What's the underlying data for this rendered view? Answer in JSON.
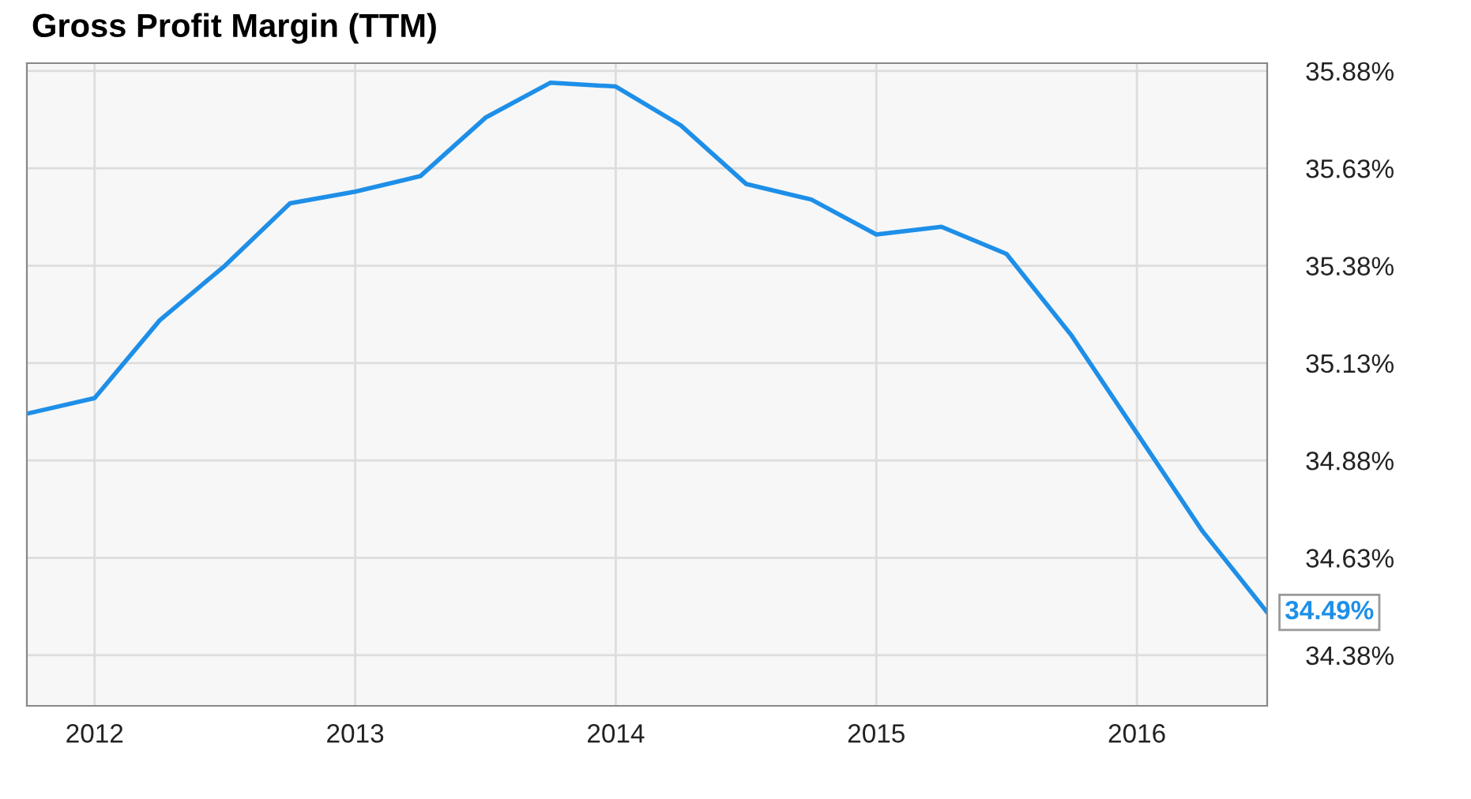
{
  "chart_data": {
    "type": "line",
    "title": "Gross Profit Margin (TTM)",
    "x": [
      2011.74,
      2012,
      2012.25,
      2012.5,
      2012.75,
      2013,
      2013.25,
      2013.5,
      2013.75,
      2014,
      2014.25,
      2014.5,
      2014.75,
      2015,
      2015.25,
      2015.5,
      2015.75,
      2016,
      2016.25,
      2016.5
    ],
    "series": [
      {
        "color": "#1e8fe8",
        "values": [
          35.0,
          35.04,
          35.24,
          35.38,
          35.54,
          35.57,
          35.61,
          35.76,
          35.85,
          35.84,
          35.74,
          35.59,
          35.55,
          35.46,
          35.48,
          35.41,
          35.2,
          34.95,
          34.7,
          34.49
        ],
        "value_labels": [
          null,
          null,
          null,
          null,
          null,
          null,
          null,
          null,
          null,
          null,
          null,
          null,
          null,
          null,
          null,
          null,
          null,
          null,
          null,
          "34.49%"
        ]
      }
    ],
    "xlim": [
      2011.74,
      2016.5
    ],
    "xticks": [
      {
        "value": 2012,
        "label": "2012"
      },
      {
        "value": 2013,
        "label": "2013"
      },
      {
        "value": 2014,
        "label": "2014"
      },
      {
        "value": 2015,
        "label": "2015"
      },
      {
        "value": 2016,
        "label": "2016"
      }
    ],
    "ylim": [
      34.25,
      35.9
    ],
    "yticks": [
      {
        "value": 34.38,
        "label": "34.38%"
      },
      {
        "value": 34.63,
        "label": "34.63%"
      },
      {
        "value": 34.88,
        "label": "34.88%"
      },
      {
        "value": 35.13,
        "label": "35.13%"
      },
      {
        "value": 35.38,
        "label": "35.38%"
      },
      {
        "value": 35.63,
        "label": "35.63%"
      },
      {
        "value": 35.88,
        "label": "35.88%"
      }
    ],
    "grid": true,
    "legend": false
  }
}
